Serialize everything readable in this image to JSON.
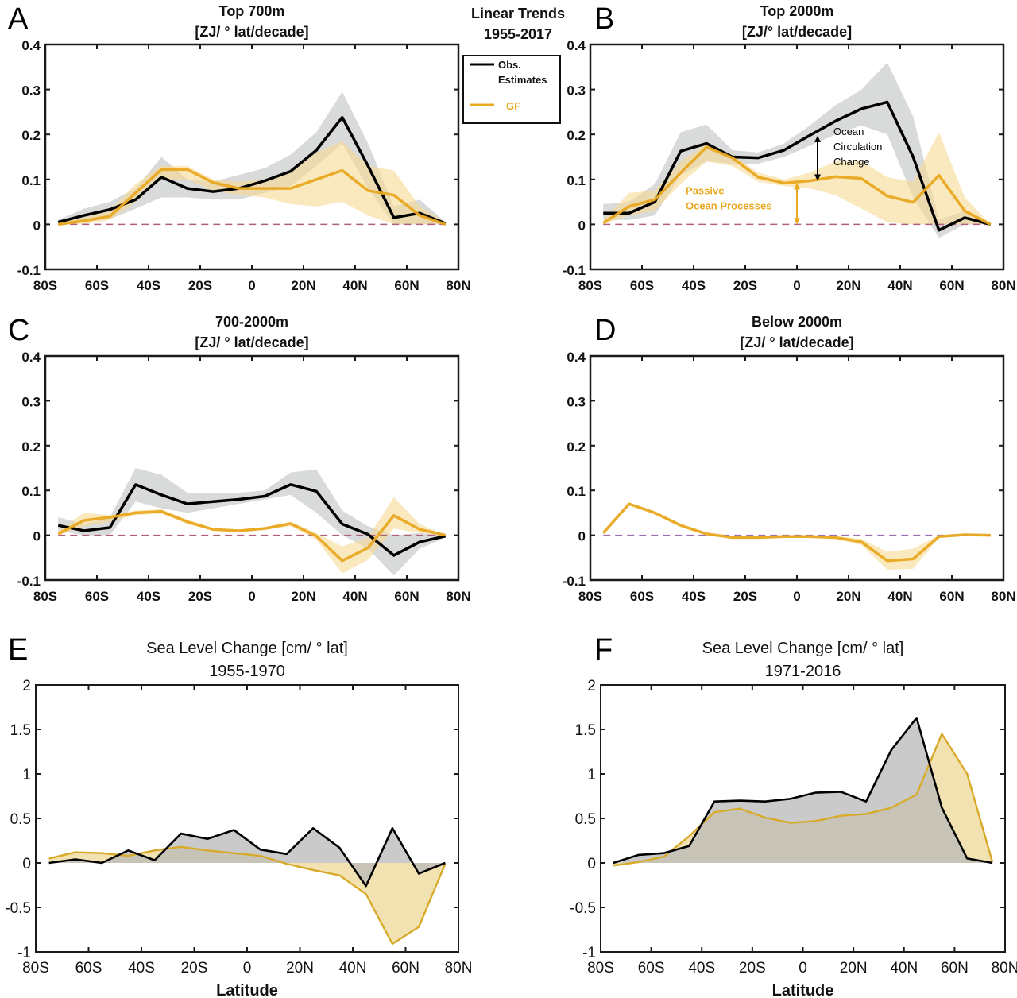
{
  "header": {
    "line1": "Linear Trends",
    "line2": "1955-2017"
  },
  "colors": {
    "obs": "#000000",
    "gf": "#e8a820",
    "obs_band": "#c9cccc",
    "gf_band": "#f6d892",
    "zero_line_top": "#b0607a",
    "zero_line_D": "#9a70b0",
    "sea_obs_fill": "#b8b8b8",
    "sea_gf_fill": "#f1dfa8",
    "sea_gf_line": "#d8aa2a"
  },
  "legend": {
    "items": [
      {
        "label_line1": "Obs.",
        "label_line2": "Estimates",
        "series": "obs"
      },
      {
        "label_line1": "GF",
        "label_line2": "",
        "series": "gf"
      }
    ]
  },
  "chart_data": [
    {
      "id": "A",
      "letter": "A",
      "type": "line",
      "title": "Top 700m",
      "subtitle": "[ZJ/ ° lat/decade]",
      "xlabel": "",
      "ylabel": "",
      "xticks": [
        -80,
        -60,
        -40,
        -20,
        0,
        20,
        40,
        60,
        80
      ],
      "xticklabels": [
        "80S",
        "60S",
        "40S",
        "20S",
        "0",
        "20N",
        "40N",
        "60N",
        "80N"
      ],
      "yticks": [
        -0.1,
        0,
        0.1,
        0.2,
        0.3,
        0.4
      ],
      "yticklabels": [
        "-0.1",
        "0",
        "0.1",
        "0.2",
        "0.3",
        "0.4"
      ],
      "xlim": [
        -80,
        80
      ],
      "ylim": [
        -0.1,
        0.4
      ],
      "zero_line": true,
      "x": [
        -75,
        -65,
        -55,
        -45,
        -35,
        -25,
        -15,
        -5,
        5,
        15,
        25,
        35,
        45,
        55,
        65,
        75
      ],
      "series": [
        {
          "name": "Obs. Estimates",
          "key": "obs",
          "values": [
            0.005,
            0.02,
            0.033,
            0.055,
            0.105,
            0.08,
            0.073,
            0.08,
            0.097,
            0.118,
            0.165,
            0.238,
            0.13,
            0.015,
            0.025,
            0.002
          ],
          "lower": [
            0.0,
            0.005,
            0.012,
            0.035,
            0.06,
            0.06,
            0.055,
            0.055,
            0.07,
            0.085,
            0.13,
            0.18,
            0.08,
            0.0,
            0.0,
            0.0
          ],
          "upper": [
            0.01,
            0.035,
            0.05,
            0.08,
            0.15,
            0.1,
            0.095,
            0.11,
            0.125,
            0.155,
            0.205,
            0.295,
            0.18,
            0.04,
            0.055,
            0.005
          ]
        },
        {
          "name": "GF",
          "key": "gf",
          "values": [
            0.0,
            0.008,
            0.018,
            0.07,
            0.122,
            0.122,
            0.093,
            0.08,
            0.08,
            0.08,
            0.1,
            0.12,
            0.075,
            0.065,
            0.02,
            0.0
          ],
          "lower": [
            0.0,
            0.0,
            0.01,
            0.05,
            0.1,
            0.1,
            0.075,
            0.065,
            0.06,
            0.045,
            0.04,
            0.05,
            0.02,
            0.0,
            0.0,
            0.0
          ],
          "upper": [
            0.005,
            0.015,
            0.03,
            0.09,
            0.13,
            0.13,
            0.1,
            0.095,
            0.1,
            0.12,
            0.16,
            0.185,
            0.13,
            0.12,
            0.04,
            0.005
          ]
        }
      ]
    },
    {
      "id": "B",
      "letter": "B",
      "type": "line",
      "title": "Top 2000m",
      "subtitle": "[ZJ/° lat/decade]",
      "xlabel": "",
      "ylabel": "",
      "xticks": [
        -80,
        -60,
        -40,
        -20,
        0,
        20,
        40,
        60,
        80
      ],
      "xticklabels": [
        "80S",
        "60S",
        "40S",
        "20S",
        "0",
        "20N",
        "40N",
        "60N",
        "80N"
      ],
      "yticks": [
        -0.1,
        0,
        0.1,
        0.2,
        0.3,
        0.4
      ],
      "yticklabels": [
        "-0.1",
        "0",
        "0.1",
        "0.2",
        "0.3",
        "0.4"
      ],
      "xlim": [
        -80,
        80
      ],
      "ylim": [
        -0.1,
        0.4
      ],
      "zero_line": true,
      "x": [
        -75,
        -65,
        -55,
        -45,
        -35,
        -25,
        -15,
        -5,
        5,
        15,
        25,
        35,
        45,
        55,
        65,
        75
      ],
      "series": [
        {
          "name": "Obs. Estimates",
          "key": "obs",
          "values": [
            0.025,
            0.025,
            0.05,
            0.163,
            0.18,
            0.15,
            0.148,
            0.165,
            0.198,
            0.23,
            0.257,
            0.272,
            0.15,
            -0.013,
            0.015,
            0.0
          ],
          "lower": [
            0.01,
            0.01,
            0.02,
            0.11,
            0.14,
            0.135,
            0.135,
            0.15,
            0.175,
            0.2,
            0.22,
            0.2,
            0.06,
            -0.03,
            0.0,
            0.0
          ],
          "upper": [
            0.045,
            0.05,
            0.09,
            0.205,
            0.222,
            0.165,
            0.16,
            0.18,
            0.22,
            0.265,
            0.3,
            0.36,
            0.24,
            0.01,
            0.03,
            0.0
          ]
        },
        {
          "name": "GF",
          "key": "gf",
          "values": [
            0.003,
            0.04,
            0.055,
            0.115,
            0.172,
            0.148,
            0.105,
            0.092,
            0.097,
            0.106,
            0.102,
            0.063,
            0.049,
            0.109,
            0.03,
            0.0
          ],
          "lower": [
            0.0,
            0.02,
            0.03,
            0.09,
            0.14,
            0.13,
            0.095,
            0.085,
            0.08,
            0.065,
            0.035,
            0.005,
            0.0,
            0.0,
            0.0,
            0.0
          ],
          "upper": [
            0.01,
            0.07,
            0.075,
            0.14,
            0.18,
            0.155,
            0.115,
            0.1,
            0.115,
            0.14,
            0.14,
            0.105,
            0.095,
            0.205,
            0.06,
            0.0
          ]
        }
      ],
      "annotations": [
        {
          "key": "ocean_circulation",
          "lines": [
            "Ocean",
            "Circulation",
            "Change"
          ],
          "series": "obs",
          "x": 8,
          "y_from": 0.197,
          "y_to": 0.097
        },
        {
          "key": "passive_ocean",
          "lines": [
            "Passive",
            "Ocean Processes"
          ],
          "series": "gf",
          "x": 0,
          "y_from": 0.092,
          "y_to": 0.0
        }
      ]
    },
    {
      "id": "C",
      "letter": "C",
      "type": "line",
      "title": "700-2000m",
      "subtitle": "[ZJ/ ° lat/decade]",
      "xlabel": "",
      "ylabel": "",
      "xticks": [
        -80,
        -60,
        -40,
        -20,
        0,
        20,
        40,
        60,
        80
      ],
      "xticklabels": [
        "80S",
        "60S",
        "40S",
        "20S",
        "0",
        "20N",
        "40N",
        "60N",
        "80N"
      ],
      "yticks": [
        -0.1,
        0,
        0.1,
        0.2,
        0.3,
        0.4
      ],
      "yticklabels": [
        "-0.1",
        "0",
        "0.1",
        "0.2",
        "0.3",
        "0.4"
      ],
      "xlim": [
        -80,
        80
      ],
      "ylim": [
        -0.1,
        0.4
      ],
      "zero_line": true,
      "x": [
        -75,
        -65,
        -55,
        -45,
        -35,
        -25,
        -15,
        -5,
        5,
        15,
        25,
        35,
        45,
        55,
        65,
        75
      ],
      "series": [
        {
          "name": "Obs. Estimates",
          "key": "obs",
          "values": [
            0.022,
            0.01,
            0.017,
            0.113,
            0.09,
            0.07,
            0.075,
            0.08,
            0.087,
            0.113,
            0.098,
            0.025,
            0.002,
            -0.045,
            -0.015,
            -0.002
          ],
          "lower": [
            0.01,
            0.0,
            0.0,
            0.075,
            0.06,
            0.05,
            0.06,
            0.07,
            0.08,
            0.09,
            0.05,
            0.0,
            -0.03,
            -0.09,
            -0.03,
            -0.005
          ],
          "upper": [
            0.04,
            0.025,
            0.04,
            0.15,
            0.135,
            0.095,
            0.095,
            0.095,
            0.1,
            0.14,
            0.147,
            0.055,
            0.02,
            0.0,
            0.005,
            0.0
          ]
        },
        {
          "name": "GF",
          "key": "gf",
          "values": [
            0.003,
            0.033,
            0.04,
            0.05,
            0.053,
            0.03,
            0.013,
            0.01,
            0.015,
            0.026,
            -0.002,
            -0.057,
            -0.028,
            0.044,
            0.013,
            0.0
          ],
          "lower": [
            0.0,
            0.02,
            0.03,
            0.045,
            0.048,
            0.025,
            0.01,
            0.007,
            0.012,
            0.02,
            -0.01,
            -0.085,
            -0.055,
            0.015,
            0.005,
            0.0
          ],
          "upper": [
            0.01,
            0.05,
            0.045,
            0.055,
            0.058,
            0.035,
            0.016,
            0.013,
            0.018,
            0.03,
            0.005,
            -0.025,
            -0.005,
            0.085,
            0.025,
            0.0
          ]
        }
      ]
    },
    {
      "id": "D",
      "letter": "D",
      "type": "line",
      "title": "Below 2000m",
      "subtitle": "[ZJ/ ° lat/decade]",
      "xlabel": "",
      "ylabel": "",
      "xticks": [
        -80,
        -60,
        -40,
        -20,
        0,
        20,
        40,
        60,
        80
      ],
      "xticklabels": [
        "80S",
        "60S",
        "40S",
        "20S",
        "0",
        "20N",
        "40N",
        "60N",
        "80N"
      ],
      "yticks": [
        -0.1,
        0,
        0.1,
        0.2,
        0.3,
        0.4
      ],
      "yticklabels": [
        "-0.1",
        "0",
        "0.1",
        "0.2",
        "0.3",
        "0.4"
      ],
      "xlim": [
        -80,
        80
      ],
      "ylim": [
        -0.1,
        0.4
      ],
      "zero_line": true,
      "zero_line_color_key": "zero_line_D",
      "x": [
        -75,
        -65,
        -55,
        -45,
        -35,
        -25,
        -15,
        -5,
        5,
        15,
        25,
        35,
        45,
        55,
        65,
        75
      ],
      "series": [
        {
          "name": "GF",
          "key": "gf",
          "values": [
            0.005,
            0.07,
            0.05,
            0.022,
            0.003,
            -0.005,
            -0.005,
            -0.003,
            -0.003,
            -0.005,
            -0.015,
            -0.057,
            -0.053,
            -0.003,
            0.001,
            0.0
          ],
          "lower": [
            0.003,
            0.066,
            0.046,
            0.018,
            0.0,
            -0.008,
            -0.008,
            -0.006,
            -0.006,
            -0.009,
            -0.022,
            -0.077,
            -0.075,
            -0.006,
            -0.002,
            -0.002
          ],
          "upper": [
            0.007,
            0.073,
            0.053,
            0.025,
            0.005,
            -0.002,
            -0.002,
            0.0,
            0.0,
            -0.002,
            -0.008,
            -0.037,
            -0.03,
            0.0,
            0.003,
            0.002
          ]
        }
      ]
    },
    {
      "id": "E",
      "letter": "E",
      "type": "area",
      "title": "Sea Level Change [cm/ ° lat]",
      "subtitle": "1955-1970",
      "xlabel": "Latitude",
      "ylabel": "",
      "xticks": [
        -80,
        -60,
        -40,
        -20,
        0,
        20,
        40,
        60,
        80
      ],
      "xticklabels": [
        "80S",
        "60S",
        "40S",
        "20S",
        "0",
        "20N",
        "40N",
        "60N",
        "80N"
      ],
      "yticks": [
        -1,
        -0.5,
        0,
        0.5,
        1,
        1.5,
        2
      ],
      "yticklabels": [
        "-1",
        "-0.5",
        "0",
        "0.5",
        "1",
        "1.5",
        "2"
      ],
      "xlim": [
        -80,
        80
      ],
      "ylim": [
        -1,
        2
      ],
      "zero_line": false,
      "x": [
        -75,
        -65,
        -55,
        -45,
        -35,
        -25,
        -15,
        -5,
        5,
        15,
        25,
        35,
        45,
        55,
        65,
        75
      ],
      "series": [
        {
          "name": "GF",
          "key": "gf",
          "values": [
            0.05,
            0.12,
            0.11,
            0.08,
            0.14,
            0.18,
            0.14,
            0.11,
            0.08,
            -0.01,
            -0.08,
            -0.14,
            -0.35,
            -0.91,
            -0.72,
            -0.01
          ]
        },
        {
          "name": "Obs. Estimates",
          "key": "obs",
          "values": [
            0.0,
            0.04,
            0.0,
            0.14,
            0.03,
            0.33,
            0.27,
            0.37,
            0.15,
            0.1,
            0.39,
            0.17,
            -0.26,
            0.39,
            -0.12,
            0.0
          ]
        }
      ]
    },
    {
      "id": "F",
      "letter": "F",
      "type": "area",
      "title": "Sea Level Change [cm/ ° lat]",
      "subtitle": "1971-2016",
      "xlabel": "Latitude",
      "ylabel": "",
      "xticks": [
        -80,
        -60,
        -40,
        -20,
        0,
        20,
        40,
        60,
        80
      ],
      "xticklabels": [
        "80S",
        "60S",
        "40S",
        "20S",
        "0",
        "20N",
        "40N",
        "60N",
        "80N"
      ],
      "yticks": [
        -1,
        -0.5,
        0,
        0.5,
        1,
        1.5,
        2
      ],
      "yticklabels": [
        "-1",
        "-0.5",
        "0",
        "0.5",
        "1",
        "1.5",
        "2"
      ],
      "xlim": [
        -80,
        80
      ],
      "ylim": [
        -1,
        2
      ],
      "zero_line": false,
      "x": [
        -75,
        -65,
        -55,
        -45,
        -35,
        -25,
        -15,
        -5,
        5,
        15,
        25,
        35,
        45,
        55,
        65,
        75
      ],
      "series": [
        {
          "name": "GF",
          "key": "gf",
          "values": [
            -0.03,
            0.01,
            0.07,
            0.3,
            0.57,
            0.61,
            0.51,
            0.45,
            0.47,
            0.53,
            0.55,
            0.62,
            0.77,
            1.45,
            1.0,
            0.01
          ]
        },
        {
          "name": "Obs. Estimates",
          "key": "obs",
          "values": [
            0.0,
            0.09,
            0.11,
            0.19,
            0.69,
            0.7,
            0.69,
            0.72,
            0.79,
            0.8,
            0.69,
            1.27,
            1.63,
            0.62,
            0.05,
            0.0
          ]
        }
      ]
    }
  ]
}
